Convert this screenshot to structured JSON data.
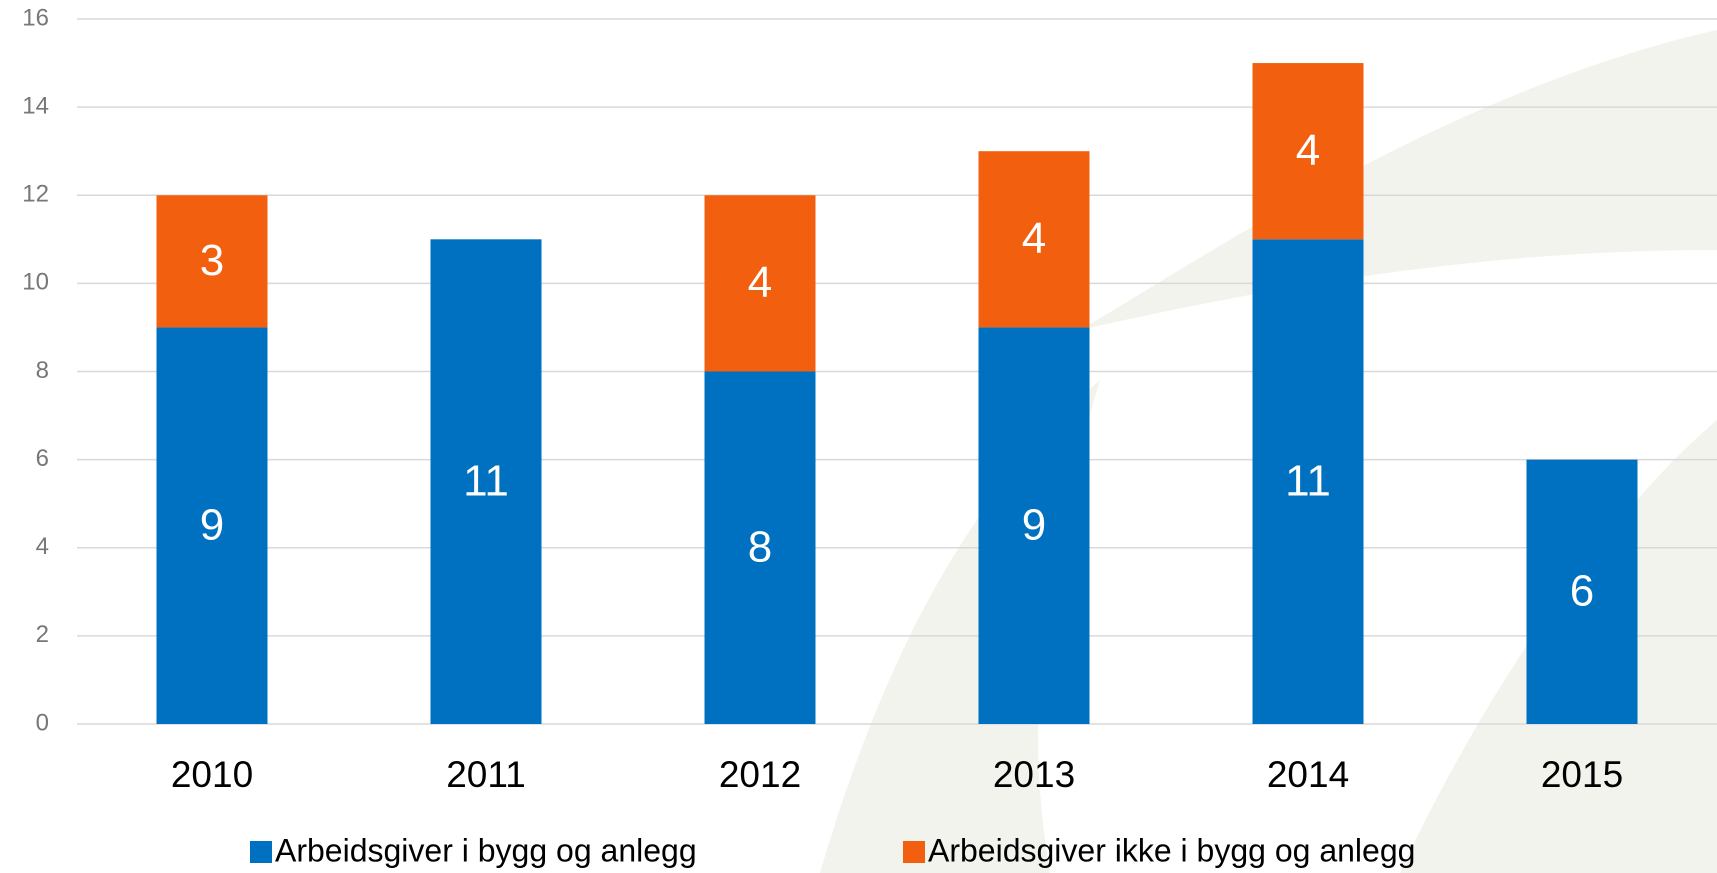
{
  "chart_data": {
    "type": "stacked_bar",
    "categories": [
      "2010",
      "2011",
      "2012",
      "2013",
      "2014",
      "2015"
    ],
    "series": [
      {
        "name": "Arbeidsgiver i bygg og anlegg",
        "color": "#0070c0",
        "values": [
          9,
          11,
          8,
          9,
          11,
          6
        ]
      },
      {
        "name": "Arbeidsgiver ikke i bygg og anlegg",
        "color": "#f2600f",
        "values": [
          3,
          null,
          4,
          4,
          4,
          null
        ]
      }
    ],
    "ylim": [
      0,
      16
    ],
    "yticks": [
      0,
      2,
      4,
      6,
      8,
      10,
      12,
      14,
      16
    ],
    "grid": true,
    "legend": "bottom"
  }
}
